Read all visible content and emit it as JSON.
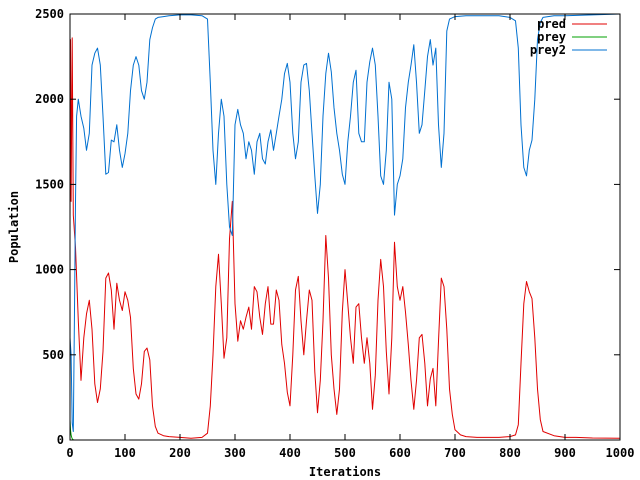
{
  "chart_data": {
    "type": "line",
    "xlabel": "Iterations",
    "ylabel": "Population",
    "xlim": [
      0,
      1000
    ],
    "ylim": [
      0,
      2500
    ],
    "x_ticks": [
      0,
      100,
      200,
      300,
      400,
      500,
      600,
      700,
      800,
      900,
      1000
    ],
    "y_ticks": [
      0,
      500,
      1000,
      1500,
      2000,
      2500
    ],
    "legend_position": "top-right",
    "grid": false,
    "series": [
      {
        "name": "pred",
        "color": "#e00000",
        "points": [
          [
            0,
            1300
          ],
          [
            1,
            2350
          ],
          [
            2,
            1400
          ],
          [
            4,
            2360
          ],
          [
            6,
            1320
          ],
          [
            10,
            1130
          ],
          [
            15,
            700
          ],
          [
            20,
            350
          ],
          [
            25,
            600
          ],
          [
            30,
            740
          ],
          [
            35,
            820
          ],
          [
            40,
            650
          ],
          [
            45,
            330
          ],
          [
            50,
            220
          ],
          [
            55,
            300
          ],
          [
            60,
            520
          ],
          [
            65,
            950
          ],
          [
            70,
            980
          ],
          [
            75,
            880
          ],
          [
            80,
            650
          ],
          [
            85,
            920
          ],
          [
            90,
            820
          ],
          [
            95,
            760
          ],
          [
            100,
            870
          ],
          [
            105,
            820
          ],
          [
            110,
            720
          ],
          [
            115,
            420
          ],
          [
            120,
            270
          ],
          [
            125,
            240
          ],
          [
            130,
            330
          ],
          [
            135,
            520
          ],
          [
            140,
            540
          ],
          [
            145,
            470
          ],
          [
            150,
            200
          ],
          [
            155,
            80
          ],
          [
            160,
            40
          ],
          [
            170,
            25
          ],
          [
            180,
            20
          ],
          [
            200,
            15
          ],
          [
            220,
            10
          ],
          [
            240,
            15
          ],
          [
            250,
            40
          ],
          [
            255,
            200
          ],
          [
            260,
            500
          ],
          [
            265,
            900
          ],
          [
            270,
            1090
          ],
          [
            275,
            800
          ],
          [
            280,
            480
          ],
          [
            285,
            600
          ],
          [
            290,
            1180
          ],
          [
            295,
            1400
          ],
          [
            300,
            800
          ],
          [
            305,
            580
          ],
          [
            310,
            700
          ],
          [
            315,
            650
          ],
          [
            320,
            720
          ],
          [
            325,
            780
          ],
          [
            330,
            650
          ],
          [
            335,
            900
          ],
          [
            340,
            870
          ],
          [
            345,
            720
          ],
          [
            350,
            620
          ],
          [
            355,
            800
          ],
          [
            360,
            900
          ],
          [
            365,
            680
          ],
          [
            370,
            680
          ],
          [
            375,
            880
          ],
          [
            380,
            820
          ],
          [
            385,
            560
          ],
          [
            390,
            450
          ],
          [
            395,
            280
          ],
          [
            400,
            200
          ],
          [
            405,
            500
          ],
          [
            410,
            880
          ],
          [
            415,
            960
          ],
          [
            420,
            700
          ],
          [
            425,
            500
          ],
          [
            430,
            700
          ],
          [
            435,
            880
          ],
          [
            440,
            820
          ],
          [
            445,
            400
          ],
          [
            450,
            160
          ],
          [
            455,
            350
          ],
          [
            460,
            700
          ],
          [
            465,
            1200
          ],
          [
            470,
            950
          ],
          [
            475,
            500
          ],
          [
            480,
            300
          ],
          [
            485,
            150
          ],
          [
            490,
            300
          ],
          [
            495,
            750
          ],
          [
            500,
            1000
          ],
          [
            505,
            800
          ],
          [
            510,
            600
          ],
          [
            515,
            450
          ],
          [
            520,
            780
          ],
          [
            525,
            800
          ],
          [
            530,
            600
          ],
          [
            535,
            450
          ],
          [
            540,
            600
          ],
          [
            545,
            450
          ],
          [
            550,
            180
          ],
          [
            555,
            380
          ],
          [
            560,
            820
          ],
          [
            565,
            1060
          ],
          [
            570,
            900
          ],
          [
            575,
            520
          ],
          [
            580,
            270
          ],
          [
            585,
            600
          ],
          [
            590,
            1160
          ],
          [
            595,
            900
          ],
          [
            600,
            820
          ],
          [
            605,
            900
          ],
          [
            610,
            750
          ],
          [
            615,
            560
          ],
          [
            620,
            350
          ],
          [
            625,
            180
          ],
          [
            630,
            350
          ],
          [
            635,
            600
          ],
          [
            640,
            620
          ],
          [
            645,
            450
          ],
          [
            650,
            200
          ],
          [
            655,
            360
          ],
          [
            660,
            420
          ],
          [
            665,
            200
          ],
          [
            670,
            580
          ],
          [
            675,
            950
          ],
          [
            680,
            900
          ],
          [
            685,
            650
          ],
          [
            690,
            300
          ],
          [
            695,
            150
          ],
          [
            700,
            60
          ],
          [
            710,
            30
          ],
          [
            720,
            20
          ],
          [
            740,
            15
          ],
          [
            760,
            15
          ],
          [
            780,
            15
          ],
          [
            800,
            20
          ],
          [
            810,
            30
          ],
          [
            815,
            90
          ],
          [
            820,
            450
          ],
          [
            825,
            800
          ],
          [
            830,
            930
          ],
          [
            835,
            870
          ],
          [
            840,
            830
          ],
          [
            845,
            600
          ],
          [
            850,
            300
          ],
          [
            855,
            120
          ],
          [
            860,
            50
          ],
          [
            880,
            25
          ],
          [
            900,
            15
          ],
          [
            920,
            15
          ],
          [
            950,
            12
          ],
          [
            1000,
            10
          ]
        ]
      },
      {
        "name": "prey",
        "color": "#00a000",
        "points": [
          [
            0,
            120
          ],
          [
            1,
            60
          ],
          [
            2,
            30
          ],
          [
            3,
            15
          ],
          [
            4,
            8
          ],
          [
            5,
            3
          ],
          [
            6,
            1
          ],
          [
            8,
            0
          ],
          [
            1000,
            0
          ]
        ]
      },
      {
        "name": "prey2",
        "color": "#0070d0",
        "points": [
          [
            0,
            600
          ],
          [
            2,
            500
          ],
          [
            4,
            100
          ],
          [
            6,
            50
          ],
          [
            8,
            700
          ],
          [
            10,
            1400
          ],
          [
            12,
            1900
          ],
          [
            15,
            2000
          ],
          [
            20,
            1900
          ],
          [
            25,
            1830
          ],
          [
            30,
            1700
          ],
          [
            35,
            1800
          ],
          [
            40,
            2200
          ],
          [
            45,
            2270
          ],
          [
            50,
            2300
          ],
          [
            55,
            2200
          ],
          [
            60,
            1900
          ],
          [
            65,
            1560
          ],
          [
            70,
            1570
          ],
          [
            75,
            1760
          ],
          [
            80,
            1750
          ],
          [
            85,
            1850
          ],
          [
            90,
            1700
          ],
          [
            95,
            1600
          ],
          [
            100,
            1680
          ],
          [
            105,
            1800
          ],
          [
            110,
            2050
          ],
          [
            115,
            2200
          ],
          [
            120,
            2250
          ],
          [
            125,
            2200
          ],
          [
            130,
            2050
          ],
          [
            135,
            2000
          ],
          [
            140,
            2100
          ],
          [
            145,
            2350
          ],
          [
            150,
            2420
          ],
          [
            155,
            2470
          ],
          [
            160,
            2480
          ],
          [
            170,
            2485
          ],
          [
            180,
            2490
          ],
          [
            200,
            2495
          ],
          [
            220,
            2495
          ],
          [
            240,
            2490
          ],
          [
            250,
            2470
          ],
          [
            255,
            2100
          ],
          [
            260,
            1700
          ],
          [
            265,
            1500
          ],
          [
            270,
            1800
          ],
          [
            275,
            2000
          ],
          [
            280,
            1900
          ],
          [
            285,
            1500
          ],
          [
            290,
            1250
          ],
          [
            295,
            1200
          ],
          [
            300,
            1850
          ],
          [
            305,
            1940
          ],
          [
            310,
            1850
          ],
          [
            315,
            1800
          ],
          [
            320,
            1650
          ],
          [
            325,
            1750
          ],
          [
            330,
            1700
          ],
          [
            335,
            1560
          ],
          [
            340,
            1750
          ],
          [
            345,
            1800
          ],
          [
            350,
            1650
          ],
          [
            355,
            1620
          ],
          [
            360,
            1750
          ],
          [
            365,
            1820
          ],
          [
            370,
            1700
          ],
          [
            375,
            1800
          ],
          [
            380,
            1900
          ],
          [
            385,
            2000
          ],
          [
            390,
            2150
          ],
          [
            395,
            2210
          ],
          [
            400,
            2100
          ],
          [
            405,
            1800
          ],
          [
            410,
            1650
          ],
          [
            415,
            1750
          ],
          [
            420,
            2100
          ],
          [
            425,
            2200
          ],
          [
            430,
            2210
          ],
          [
            435,
            2050
          ],
          [
            440,
            1800
          ],
          [
            445,
            1550
          ],
          [
            450,
            1330
          ],
          [
            455,
            1500
          ],
          [
            460,
            1900
          ],
          [
            465,
            2150
          ],
          [
            470,
            2270
          ],
          [
            475,
            2160
          ],
          [
            480,
            1950
          ],
          [
            485,
            1800
          ],
          [
            490,
            1700
          ],
          [
            495,
            1560
          ],
          [
            500,
            1500
          ],
          [
            505,
            1750
          ],
          [
            510,
            1900
          ],
          [
            515,
            2100
          ],
          [
            520,
            2170
          ],
          [
            525,
            1800
          ],
          [
            530,
            1750
          ],
          [
            535,
            1750
          ],
          [
            540,
            2100
          ],
          [
            545,
            2220
          ],
          [
            550,
            2300
          ],
          [
            555,
            2200
          ],
          [
            560,
            1900
          ],
          [
            565,
            1550
          ],
          [
            570,
            1500
          ],
          [
            575,
            1700
          ],
          [
            580,
            2100
          ],
          [
            585,
            2000
          ],
          [
            590,
            1320
          ],
          [
            595,
            1500
          ],
          [
            600,
            1550
          ],
          [
            605,
            1650
          ],
          [
            610,
            1950
          ],
          [
            615,
            2100
          ],
          [
            620,
            2200
          ],
          [
            625,
            2320
          ],
          [
            630,
            2100
          ],
          [
            635,
            1800
          ],
          [
            640,
            1850
          ],
          [
            645,
            2050
          ],
          [
            650,
            2250
          ],
          [
            655,
            2350
          ],
          [
            660,
            2200
          ],
          [
            665,
            2300
          ],
          [
            670,
            1850
          ],
          [
            675,
            1600
          ],
          [
            680,
            1800
          ],
          [
            685,
            2400
          ],
          [
            690,
            2470
          ],
          [
            700,
            2485
          ],
          [
            720,
            2490
          ],
          [
            740,
            2490
          ],
          [
            760,
            2490
          ],
          [
            780,
            2490
          ],
          [
            800,
            2480
          ],
          [
            810,
            2460
          ],
          [
            815,
            2300
          ],
          [
            820,
            1850
          ],
          [
            825,
            1600
          ],
          [
            830,
            1550
          ],
          [
            835,
            1700
          ],
          [
            840,
            1760
          ],
          [
            845,
            2000
          ],
          [
            850,
            2350
          ],
          [
            855,
            2450
          ],
          [
            860,
            2480
          ],
          [
            880,
            2490
          ],
          [
            900,
            2490
          ],
          [
            950,
            2495
          ],
          [
            1000,
            2500
          ]
        ]
      }
    ]
  }
}
